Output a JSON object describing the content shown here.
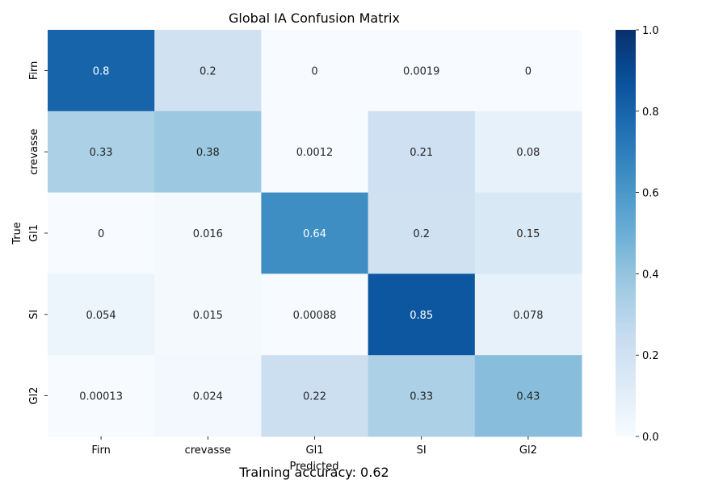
{
  "chart_data": {
    "type": "heatmap",
    "title": "Global IA Confusion Matrix",
    "xlabel": "Predicted",
    "ylabel": "True",
    "x_categories": [
      "Firn",
      "crevasse",
      "Gl1",
      "SI",
      "Gl2"
    ],
    "y_categories": [
      "Firn",
      "crevasse",
      "Gl1",
      "SI",
      "Gl2"
    ],
    "values": [
      [
        0.8,
        0.2,
        0,
        0.0019,
        0
      ],
      [
        0.33,
        0.38,
        0.0012,
        0.21,
        0.08
      ],
      [
        0,
        0.016,
        0.64,
        0.2,
        0.15
      ],
      [
        0.054,
        0.015,
        0.00088,
        0.85,
        0.078
      ],
      [
        0.00013,
        0.024,
        0.22,
        0.33,
        0.43
      ]
    ],
    "value_labels": [
      [
        "0.8",
        "0.2",
        "0",
        "0.0019",
        "0"
      ],
      [
        "0.33",
        "0.38",
        "0.0012",
        "0.21",
        "0.08"
      ],
      [
        "0",
        "0.016",
        "0.64",
        "0.2",
        "0.15"
      ],
      [
        "0.054",
        "0.015",
        "0.00088",
        "0.85",
        "0.078"
      ],
      [
        "0.00013",
        "0.024",
        "0.22",
        "0.33",
        "0.43"
      ]
    ],
    "colorbar": {
      "range": [
        0,
        1
      ],
      "ticks": [
        0,
        0.2,
        0.4,
        0.6,
        0.8,
        1
      ],
      "tick_labels": [
        "0.0",
        "0.2",
        "0.4",
        "0.6",
        "0.8",
        "1.0"
      ]
    },
    "colormap": "Blues"
  },
  "footer": {
    "accuracy_text": "Training accuracy: 0.62"
  }
}
